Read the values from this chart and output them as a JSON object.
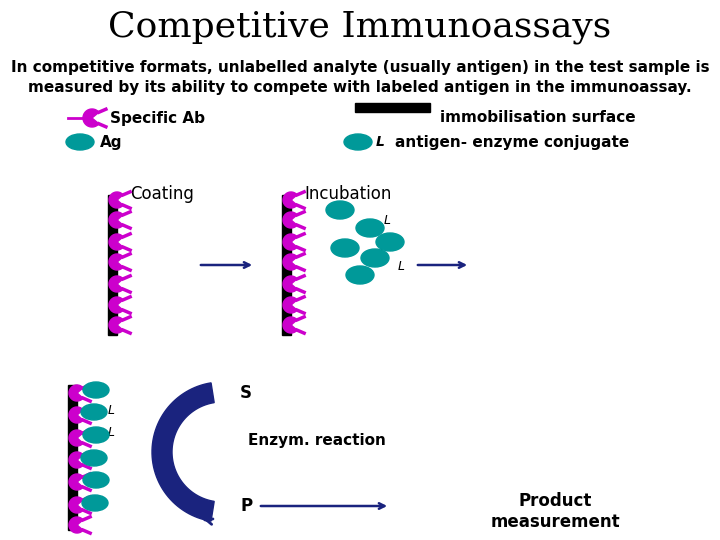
{
  "title": "Competitive Immunoassays",
  "line1": "In competitive formats, unlabelled analyte (usually antigen) in the test sample is",
  "line2": "measured by its ability to compete with labeled antigen in the immunoassay.",
  "legend_specific_ab": "Specific Ab",
  "legend_immob": "immobilisation surface",
  "legend_ag": "Ag",
  "legend_antigen_enzyme": "antigen- enzyme conjugate",
  "legend_L": "L",
  "coating_label": "Coating",
  "incubation_label": "Incubation",
  "S_label": "S",
  "enzym_label": "Enzym. reaction",
  "P_label": "P",
  "product_label": "Product\nmeasurement",
  "bg_color": "#ffffff",
  "text_color": "#000000",
  "magenta_color": "#cc00cc",
  "teal_color": "#009999",
  "navy_color": "#1a237e",
  "title_fontsize": 26,
  "body_fontsize": 11,
  "label_fontsize": 11,
  "diagram_fontsize": 12
}
